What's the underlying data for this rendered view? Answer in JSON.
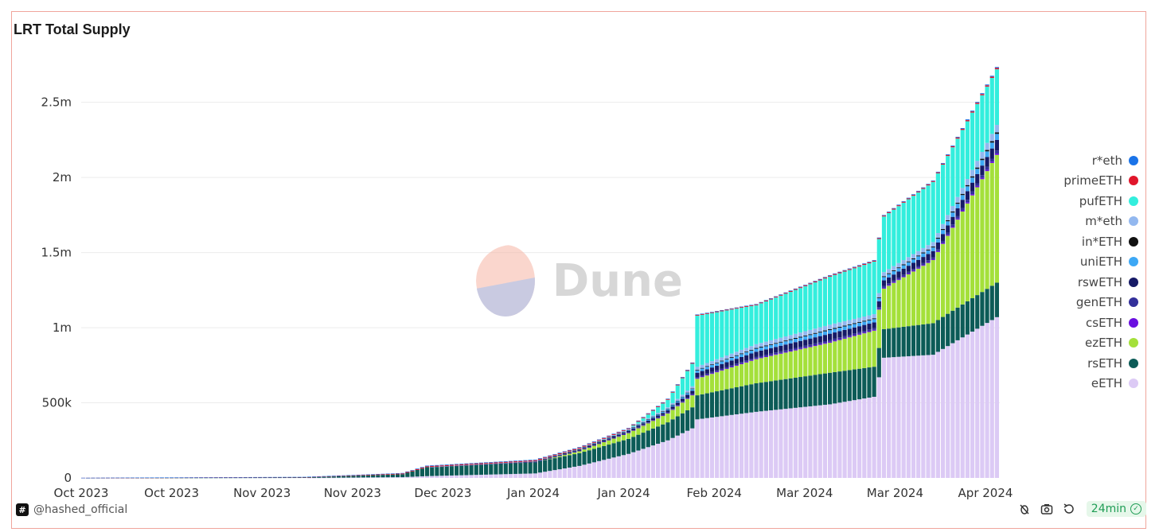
{
  "title": "LRT Total Supply",
  "author": "@hashed_official",
  "refresh_badge": "24min",
  "watermark": "Dune",
  "icons": {
    "footer_logo": "hash-icon",
    "tool_1": "bug-icon",
    "tool_2": "camera-icon",
    "tool_3": "refresh-icon",
    "badge": "check-circle-icon"
  },
  "chart_data": {
    "type": "bar",
    "stacked": true,
    "ylim": [
      0,
      2800000
    ],
    "yticks": [
      {
        "value": 0,
        "label": "0"
      },
      {
        "value": 500000,
        "label": "500k"
      },
      {
        "value": 1000000,
        "label": "1m"
      },
      {
        "value": 1500000,
        "label": "1.5m"
      },
      {
        "value": 2000000,
        "label": "2m"
      },
      {
        "value": 2500000,
        "label": "2.5m"
      }
    ],
    "xticks": [
      "Oct 2023",
      "Oct 2023",
      "Nov 2023",
      "Nov 2023",
      "Dec 2023",
      "Jan 2024",
      "Jan 2024",
      "Feb 2024",
      "Mar 2024",
      "Mar 2024",
      "Apr 2024"
    ],
    "x_start": "2023-10-01",
    "x_end": "2024-04-04",
    "grid": true,
    "legend_position": "right",
    "series_keys": [
      "eETH",
      "rsETH",
      "ezETH",
      "csETH",
      "genETH",
      "rswETH",
      "uniETH",
      "in*ETH",
      "m*eth",
      "pufETH",
      "primeETH",
      "r*eth"
    ],
    "series": [
      {
        "name": "r*eth",
        "color": "#1a73e8"
      },
      {
        "name": "primeETH",
        "color": "#e0162b"
      },
      {
        "name": "pufETH",
        "color": "#33eedd"
      },
      {
        "name": "m*eth",
        "color": "#93b8ef"
      },
      {
        "name": "in*ETH",
        "color": "#111111"
      },
      {
        "name": "uniETH",
        "color": "#3da8f5"
      },
      {
        "name": "rswETH",
        "color": "#161a66"
      },
      {
        "name": "genETH",
        "color": "#33309a"
      },
      {
        "name": "csETH",
        "color": "#6a0fe0"
      },
      {
        "name": "ezETH",
        "color": "#a4e03a"
      },
      {
        "name": "rsETH",
        "color": "#0c5b57"
      },
      {
        "name": "eETH",
        "color": "#dccaf5"
      }
    ],
    "points": [
      {
        "date": "2023-10-01",
        "eETH": 0,
        "rsETH": 0,
        "ezETH": 0,
        "other": 0,
        "pufETH": 0,
        "r*eth": 1000
      },
      {
        "date": "2023-11-15",
        "eETH": 0,
        "rsETH": 3000,
        "ezETH": 0,
        "other": 0,
        "pufETH": 0,
        "r*eth": 4000
      },
      {
        "date": "2023-12-05",
        "eETH": 5000,
        "rsETH": 20000,
        "ezETH": 0,
        "other": 0,
        "pufETH": 0,
        "r*eth": 8000
      },
      {
        "date": "2023-12-10",
        "eETH": 12000,
        "rsETH": 60000,
        "ezETH": 0,
        "other": 0,
        "pufETH": 0,
        "r*eth": 10000
      },
      {
        "date": "2024-01-01",
        "eETH": 30000,
        "rsETH": 75000,
        "ezETH": 2000,
        "other": 5000,
        "pufETH": 0,
        "r*eth": 10000
      },
      {
        "date": "2024-01-10",
        "eETH": 80000,
        "rsETH": 85000,
        "ezETH": 15000,
        "other": 15000,
        "pufETH": 0,
        "r*eth": 10000
      },
      {
        "date": "2024-01-20",
        "eETH": 160000,
        "rsETH": 100000,
        "ezETH": 40000,
        "other": 25000,
        "pufETH": 0,
        "r*eth": 8000
      },
      {
        "date": "2024-01-28",
        "eETH": 250000,
        "rsETH": 120000,
        "ezETH": 60000,
        "other": 40000,
        "pufETH": 50000,
        "r*eth": 8000
      },
      {
        "date": "2024-02-02",
        "eETH": 330000,
        "rsETH": 140000,
        "ezETH": 80000,
        "other": 60000,
        "pufETH": 150000,
        "r*eth": 8000
      },
      {
        "date": "2024-02-03",
        "eETH": 390000,
        "rsETH": 160000,
        "ezETH": 110000,
        "other": 80000,
        "pufETH": 340000,
        "r*eth": 8000
      },
      {
        "date": "2024-02-15",
        "eETH": 440000,
        "rsETH": 190000,
        "ezETH": 160000,
        "other": 100000,
        "pufETH": 260000,
        "r*eth": 8000
      },
      {
        "date": "2024-03-01",
        "eETH": 490000,
        "rsETH": 210000,
        "ezETH": 200000,
        "other": 120000,
        "pufETH": 320000,
        "r*eth": 10000
      },
      {
        "date": "2024-03-10",
        "eETH": 540000,
        "rsETH": 200000,
        "ezETH": 240000,
        "other": 110000,
        "pufETH": 350000,
        "r*eth": 10000
      },
      {
        "date": "2024-03-12",
        "eETH": 800000,
        "rsETH": 190000,
        "ezETH": 270000,
        "other": 110000,
        "pufETH": 370000,
        "r*eth": 10000
      },
      {
        "date": "2024-03-22",
        "eETH": 820000,
        "rsETH": 210000,
        "ezETH": 420000,
        "other": 120000,
        "pufETH": 400000,
        "r*eth": 10000
      },
      {
        "date": "2024-04-04",
        "eETH": 1070000,
        "rsETH": 230000,
        "ezETH": 850000,
        "other": 200000,
        "pufETH": 370000,
        "r*eth": 15000
      }
    ]
  }
}
